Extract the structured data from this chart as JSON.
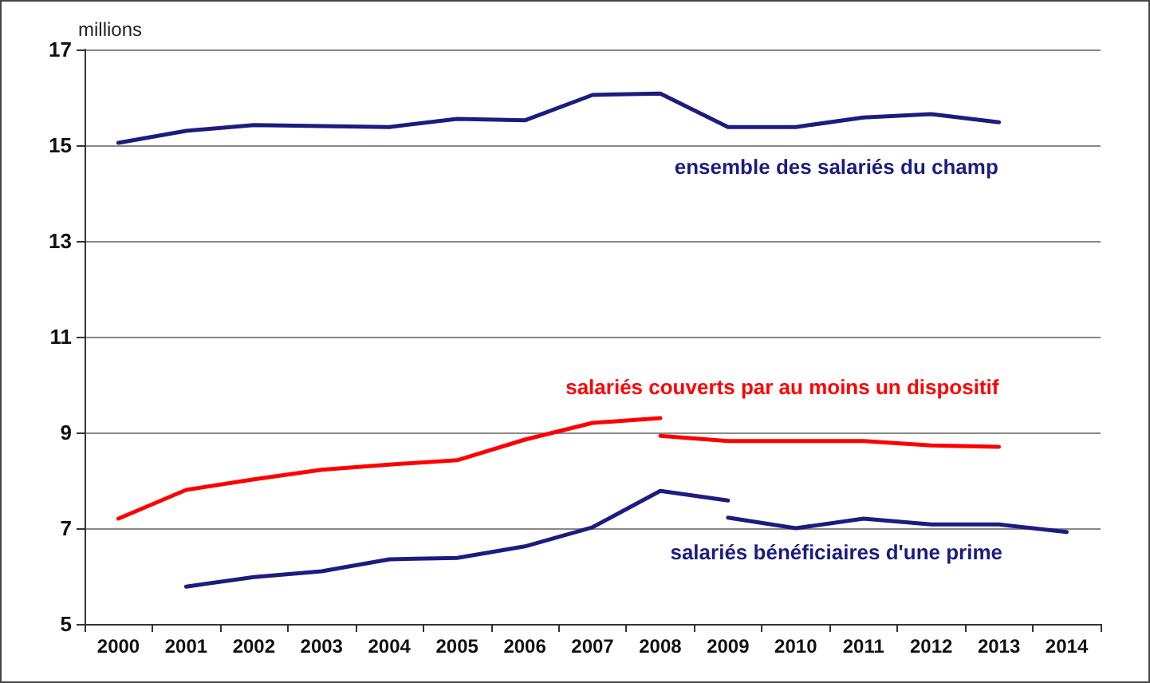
{
  "chart_data": {
    "type": "line",
    "ylabel": "millions",
    "categories": [
      "2000",
      "2001",
      "2002",
      "2003",
      "2004",
      "2005",
      "2006",
      "2007",
      "2008",
      "2009",
      "2010",
      "2011",
      "2012",
      "2013",
      "2014"
    ],
    "series": [
      {
        "name": "ensemble des salariés du champ",
        "color": "#1c1c80",
        "values": [
          15.05,
          15.3,
          15.42,
          15.4,
          15.38,
          15.55,
          15.52,
          16.05,
          16.08,
          15.38,
          15.38,
          15.58,
          15.65,
          15.48,
          null
        ]
      },
      {
        "name": "salariés couverts par au moins un dispositif",
        "color": "#ff0000",
        "values": [
          7.2,
          7.8,
          8.02,
          8.22,
          8.33,
          8.42,
          8.85,
          9.2,
          9.3,
          null,
          null,
          null,
          null,
          null,
          null
        ]
      },
      {
        "color": "#ff0000",
        "values": [
          null,
          null,
          null,
          null,
          null,
          null,
          null,
          null,
          8.93,
          8.82,
          8.82,
          8.82,
          8.73,
          8.7,
          null
        ]
      },
      {
        "name": "salariés bénéficiaires d'une prime",
        "color": "#1c1c80",
        "values": [
          null,
          5.78,
          5.98,
          6.1,
          6.35,
          6.38,
          6.62,
          7.02,
          7.78,
          7.58,
          null,
          null,
          null,
          null,
          null
        ]
      },
      {
        "color": "#1c1c80",
        "values": [
          null,
          null,
          null,
          null,
          null,
          null,
          null,
          null,
          null,
          7.22,
          7.0,
          7.2,
          7.08,
          7.08,
          6.92
        ]
      }
    ],
    "ylim": [
      5,
      17
    ],
    "yticks": [
      5,
      7,
      9,
      11,
      13,
      15,
      17
    ],
    "grid": "y",
    "legend": false,
    "marker": "none",
    "line_style": "solid"
  }
}
